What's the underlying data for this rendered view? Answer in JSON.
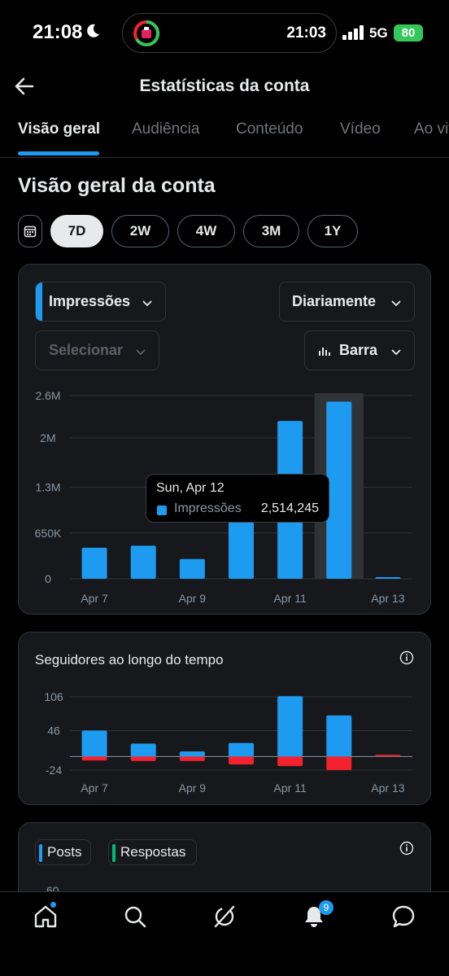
{
  "status": {
    "time": "21:08",
    "island_time": "21:03",
    "network": "5G",
    "battery": "80"
  },
  "header": {
    "title": "Estatísticas da conta"
  },
  "tabs": [
    "Visão geral",
    "Audiência",
    "Conteúdo",
    "Vídeo",
    "Ao vivo"
  ],
  "section_title": "Visão geral da conta",
  "ranges": [
    "7D",
    "2W",
    "4W",
    "3M",
    "1Y"
  ],
  "impressions_card": {
    "metric": "Impressões",
    "frequency": "Diariamente",
    "compare": "Selecionar",
    "chart_type": "Barra",
    "tooltip": {
      "date": "Sun, Apr 12",
      "label": "Impressões",
      "value": "2,514,245"
    }
  },
  "followers_card": {
    "title": "Seguidores ao longo do tempo"
  },
  "posts_card": {
    "legend": [
      "Posts",
      "Respostas"
    ],
    "ytick": "60"
  },
  "nav": {
    "notifications_badge": "9"
  },
  "colors": {
    "accent": "#1d9bf0",
    "negative": "#f4212e",
    "replies": "#00ba7c"
  },
  "chart_data": [
    {
      "type": "bar",
      "title": "",
      "categories": [
        "Apr 7",
        "Apr 8",
        "Apr 9",
        "Apr 10",
        "Apr 11",
        "Apr 12",
        "Apr 13"
      ],
      "xtick_labels": [
        "Apr 7",
        "Apr 9",
        "Apr 11",
        "Apr 13"
      ],
      "series": [
        {
          "name": "Impressões",
          "values": [
            440000,
            470000,
            280000,
            800000,
            2240000,
            2514245,
            15000
          ]
        }
      ],
      "yticks": [
        "2.6M",
        "2M",
        "1.3M",
        "650K",
        "0"
      ],
      "ytick_values": [
        2600000,
        2000000,
        1300000,
        650000,
        0
      ],
      "ylim": [
        0,
        2600000
      ],
      "highlight": "Apr 12"
    },
    {
      "type": "bar",
      "title": "Seguidores ao longo do tempo",
      "categories": [
        "Apr 7",
        "Apr 8",
        "Apr 9",
        "Apr 10",
        "Apr 11",
        "Apr 12",
        "Apr 13"
      ],
      "xtick_labels": [
        "Apr 7",
        "Apr 9",
        "Apr 11",
        "Apr 13"
      ],
      "series": [
        {
          "values": [
            46,
            23,
            9,
            24,
            107,
            73,
            0
          ]
        },
        {
          "values": [
            -7,
            -8,
            -8,
            -14,
            -17,
            -24,
            0
          ]
        }
      ],
      "yticks": [
        "106",
        "46",
        "-24"
      ],
      "ytick_values": [
        106,
        46,
        -24
      ],
      "ylim": [
        -24,
        106
      ]
    }
  ]
}
